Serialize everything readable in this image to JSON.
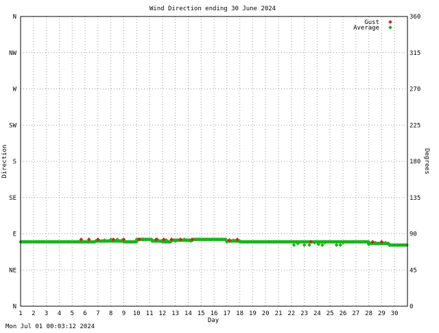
{
  "chart_data": {
    "type": "scatter",
    "title": "Wind Direction ending 30 June 2024",
    "xlabel": "Day",
    "ylabel_left": "Direction",
    "ylabel_right": "Degrees",
    "timestamp": "Mon Jul 01 00:03:12 2024",
    "xlim": [
      1,
      31
    ],
    "ylim": [
      0,
      360
    ],
    "x_ticks": [
      1,
      2,
      3,
      4,
      5,
      6,
      7,
      8,
      9,
      10,
      11,
      12,
      13,
      14,
      15,
      16,
      17,
      18,
      19,
      20,
      21,
      22,
      23,
      24,
      25,
      26,
      27,
      28,
      29,
      30
    ],
    "y_ticks_left": [
      {
        "value": 0,
        "label": "N"
      },
      {
        "value": 45,
        "label": "NE"
      },
      {
        "value": 90,
        "label": "E"
      },
      {
        "value": 135,
        "label": "SE"
      },
      {
        "value": 180,
        "label": "S"
      },
      {
        "value": 225,
        "label": "SW"
      },
      {
        "value": 270,
        "label": "W"
      },
      {
        "value": 315,
        "label": "NW"
      },
      {
        "value": 360,
        "label": "N"
      }
    ],
    "y_ticks_right": [
      0,
      45,
      90,
      135,
      180,
      225,
      270,
      315,
      360
    ],
    "grid": true,
    "legend_position": "top-right",
    "series": [
      {
        "name": "Gust",
        "color": "#e41a1c",
        "points": [
          [
            5.7,
            83
          ],
          [
            6.3,
            83
          ],
          [
            7.0,
            83
          ],
          [
            8.2,
            83
          ],
          [
            9.0,
            83
          ],
          [
            10.2,
            83
          ],
          [
            11.5,
            83
          ],
          [
            12.1,
            83
          ],
          [
            12.7,
            83
          ],
          [
            13.4,
            83
          ],
          [
            14.3,
            83
          ],
          [
            17.2,
            82
          ],
          [
            17.8,
            83
          ],
          [
            23.5,
            80
          ],
          [
            28.3,
            80
          ],
          [
            29.0,
            80
          ]
        ]
      },
      {
        "name": "Average",
        "color": "#19b419",
        "segments": [
          {
            "from": 1.0,
            "to": 6.8,
            "value": 80
          },
          {
            "from": 6.8,
            "to": 9.0,
            "value": 81
          },
          {
            "from": 9.0,
            "to": 10.0,
            "value": 80
          },
          {
            "from": 10.0,
            "to": 11.2,
            "value": 83
          },
          {
            "from": 11.2,
            "to": 12.0,
            "value": 81
          },
          {
            "from": 12.0,
            "to": 12.7,
            "value": 80
          },
          {
            "from": 12.7,
            "to": 14.4,
            "value": 82
          },
          {
            "from": 14.4,
            "to": 17.0,
            "value": 83
          },
          {
            "from": 17.0,
            "to": 18.0,
            "value": 81
          },
          {
            "from": 18.0,
            "to": 28.0,
            "value": 80
          },
          {
            "from": 28.0,
            "to": 29.6,
            "value": 78
          },
          {
            "from": 29.6,
            "to": 31.0,
            "value": 76
          }
        ],
        "points": [
          [
            7.0,
            83
          ],
          [
            7.5,
            82
          ],
          [
            8.0,
            83
          ],
          [
            8.5,
            83
          ],
          [
            8.9,
            82
          ],
          [
            10.0,
            81
          ],
          [
            10.5,
            83
          ],
          [
            11.6,
            83
          ],
          [
            12.3,
            82
          ],
          [
            13.0,
            81
          ],
          [
            13.7,
            83
          ],
          [
            14.2,
            81
          ],
          [
            17.0,
            80
          ],
          [
            17.5,
            82
          ],
          [
            22.2,
            76
          ],
          [
            22.5,
            78
          ],
          [
            23.0,
            76
          ],
          [
            23.4,
            76
          ],
          [
            23.8,
            79
          ],
          [
            24.1,
            77
          ],
          [
            24.4,
            76
          ],
          [
            24.6,
            79
          ],
          [
            25.5,
            76
          ],
          [
            25.8,
            76
          ],
          [
            26.0,
            79
          ],
          [
            28.0,
            77
          ],
          [
            28.5,
            79
          ],
          [
            29.3,
            79
          ]
        ]
      }
    ]
  }
}
